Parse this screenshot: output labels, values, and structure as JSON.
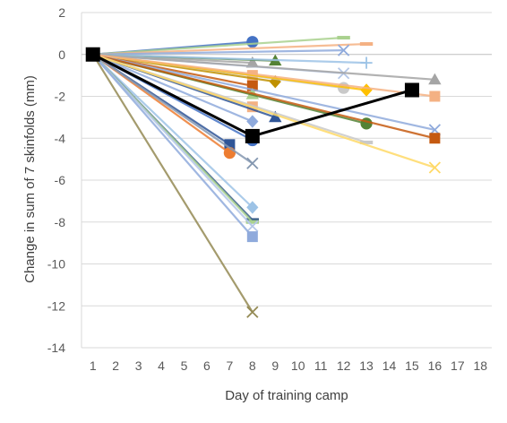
{
  "chart_data": {
    "type": "line",
    "title": "",
    "xlabel": "Day of training camp",
    "ylabel": "Change in sum of 7 skinfolds (mm)",
    "xlim": [
      0.5,
      18.5
    ],
    "ylim": [
      -14,
      2
    ],
    "x_ticks": [
      1,
      2,
      3,
      4,
      5,
      6,
      7,
      8,
      9,
      10,
      11,
      12,
      13,
      14,
      15,
      16,
      17,
      18
    ],
    "y_ticks": [
      2,
      0,
      -2,
      -4,
      -6,
      -8,
      -10,
      -12,
      -14
    ],
    "grid": true,
    "legend": "none",
    "series": [
      {
        "color": "#4472c4",
        "marker": "circle",
        "points": [
          [
            1,
            0
          ],
          [
            8,
            0.6
          ]
        ]
      },
      {
        "color": "#a9d18e",
        "marker": "dash",
        "points": [
          [
            1,
            0
          ],
          [
            12,
            0.8
          ]
        ]
      },
      {
        "color": "#f4b183",
        "marker": "dash",
        "points": [
          [
            1,
            0
          ],
          [
            13,
            0.5
          ]
        ]
      },
      {
        "color": "#8faadc",
        "marker": "x",
        "points": [
          [
            1,
            0
          ],
          [
            12,
            0.2
          ]
        ]
      },
      {
        "color": "#a5a5a5",
        "marker": "triangle",
        "points": [
          [
            1,
            0
          ],
          [
            8,
            -0.4
          ]
        ]
      },
      {
        "color": "#548235",
        "marker": "triangle",
        "points": [
          [
            1,
            0
          ],
          [
            9,
            -0.3
          ]
        ]
      },
      {
        "color": "#9dc3e6",
        "marker": "plus",
        "points": [
          [
            1,
            0
          ],
          [
            13,
            -0.4
          ]
        ]
      },
      {
        "color": "#b4c7e7",
        "marker": "x",
        "points": [
          [
            1,
            0
          ],
          [
            12,
            -0.9
          ]
        ]
      },
      {
        "color": "#f4b183",
        "marker": "square",
        "points": [
          [
            1,
            0
          ],
          [
            8,
            -1.0
          ]
        ]
      },
      {
        "color": "#bf9000",
        "marker": "diamond",
        "points": [
          [
            1,
            0
          ],
          [
            9,
            -1.3
          ]
        ]
      },
      {
        "color": "#c55a11",
        "marker": "square",
        "points": [
          [
            1,
            0
          ],
          [
            8,
            -1.5
          ]
        ]
      },
      {
        "color": "#c9c9c9",
        "marker": "circle",
        "points": [
          [
            1,
            0
          ],
          [
            12,
            -1.6
          ]
        ]
      },
      {
        "color": "#ffc000",
        "marker": "diamond",
        "points": [
          [
            1,
            0
          ],
          [
            13,
            -1.7
          ]
        ]
      },
      {
        "color": "#a9d18e",
        "marker": "triangle",
        "points": [
          [
            1,
            0
          ],
          [
            8,
            -1.9
          ]
        ]
      },
      {
        "color": "#f4b183",
        "marker": "square",
        "points": [
          [
            1,
            0
          ],
          [
            8,
            -2.5
          ]
        ]
      },
      {
        "color": "#2f5597",
        "marker": "triangle",
        "points": [
          [
            1,
            0
          ],
          [
            9,
            -3.0
          ]
        ]
      },
      {
        "color": "#8faadc",
        "marker": "diamond",
        "points": [
          [
            1,
            0
          ],
          [
            8,
            -3.2
          ]
        ]
      },
      {
        "color": "#548235",
        "marker": "circle",
        "points": [
          [
            1,
            0
          ],
          [
            13,
            -3.3
          ]
        ]
      },
      {
        "color": "#8faadc",
        "marker": "x",
        "points": [
          [
            1,
            0
          ],
          [
            16,
            -3.6
          ]
        ]
      },
      {
        "color": "#c55a11",
        "marker": "square",
        "points": [
          [
            1,
            0
          ],
          [
            16,
            -4.0
          ]
        ]
      },
      {
        "color": "#c9c9c9",
        "marker": "dash",
        "points": [
          [
            1,
            0
          ],
          [
            13,
            -4.2
          ]
        ]
      },
      {
        "color": "#2f5597",
        "marker": "square",
        "points": [
          [
            1,
            0
          ],
          [
            7,
            -4.3
          ]
        ]
      },
      {
        "color": "#4472c4",
        "marker": "circle",
        "points": [
          [
            1,
            0
          ],
          [
            8,
            -4.1
          ]
        ]
      },
      {
        "color": "#ed7d31",
        "marker": "circle",
        "points": [
          [
            1,
            0
          ],
          [
            7,
            -4.7
          ]
        ]
      },
      {
        "color": "#8497b0",
        "marker": "x",
        "points": [
          [
            1,
            0
          ],
          [
            8,
            -5.2
          ]
        ]
      },
      {
        "color": "#ffd966",
        "marker": "x",
        "points": [
          [
            1,
            0
          ],
          [
            16,
            -5.4
          ]
        ]
      },
      {
        "color": "#a5a5a5",
        "marker": "triangle",
        "points": [
          [
            1,
            0
          ],
          [
            16,
            -1.2
          ]
        ]
      },
      {
        "color": "#f4b183",
        "marker": "square",
        "points": [
          [
            1,
            0
          ],
          [
            16,
            -2.0
          ]
        ]
      },
      {
        "color": "#9dc3e6",
        "marker": "diamond",
        "points": [
          [
            1,
            0
          ],
          [
            8,
            -7.3
          ]
        ]
      },
      {
        "color": "#3a5f8a",
        "marker": "dash",
        "points": [
          [
            1,
            0
          ],
          [
            8,
            -7.9
          ]
        ]
      },
      {
        "color": "#a9d18e",
        "marker": "dash",
        "points": [
          [
            1,
            0
          ],
          [
            8,
            -8.0
          ]
        ]
      },
      {
        "color": "#b4c7e7",
        "marker": "x",
        "points": [
          [
            1,
            0
          ],
          [
            8,
            -8.2
          ]
        ]
      },
      {
        "color": "#8faadc",
        "marker": "square",
        "points": [
          [
            1,
            0
          ],
          [
            8,
            -8.7
          ]
        ]
      },
      {
        "color": "#948a54",
        "marker": "x",
        "points": [
          [
            1,
            0
          ],
          [
            8,
            -12.3
          ]
        ]
      },
      {
        "color": "#000000",
        "marker": "square",
        "bold": true,
        "points": [
          [
            1,
            0
          ],
          [
            8,
            -3.9
          ],
          [
            15,
            -1.7
          ]
        ]
      }
    ]
  }
}
